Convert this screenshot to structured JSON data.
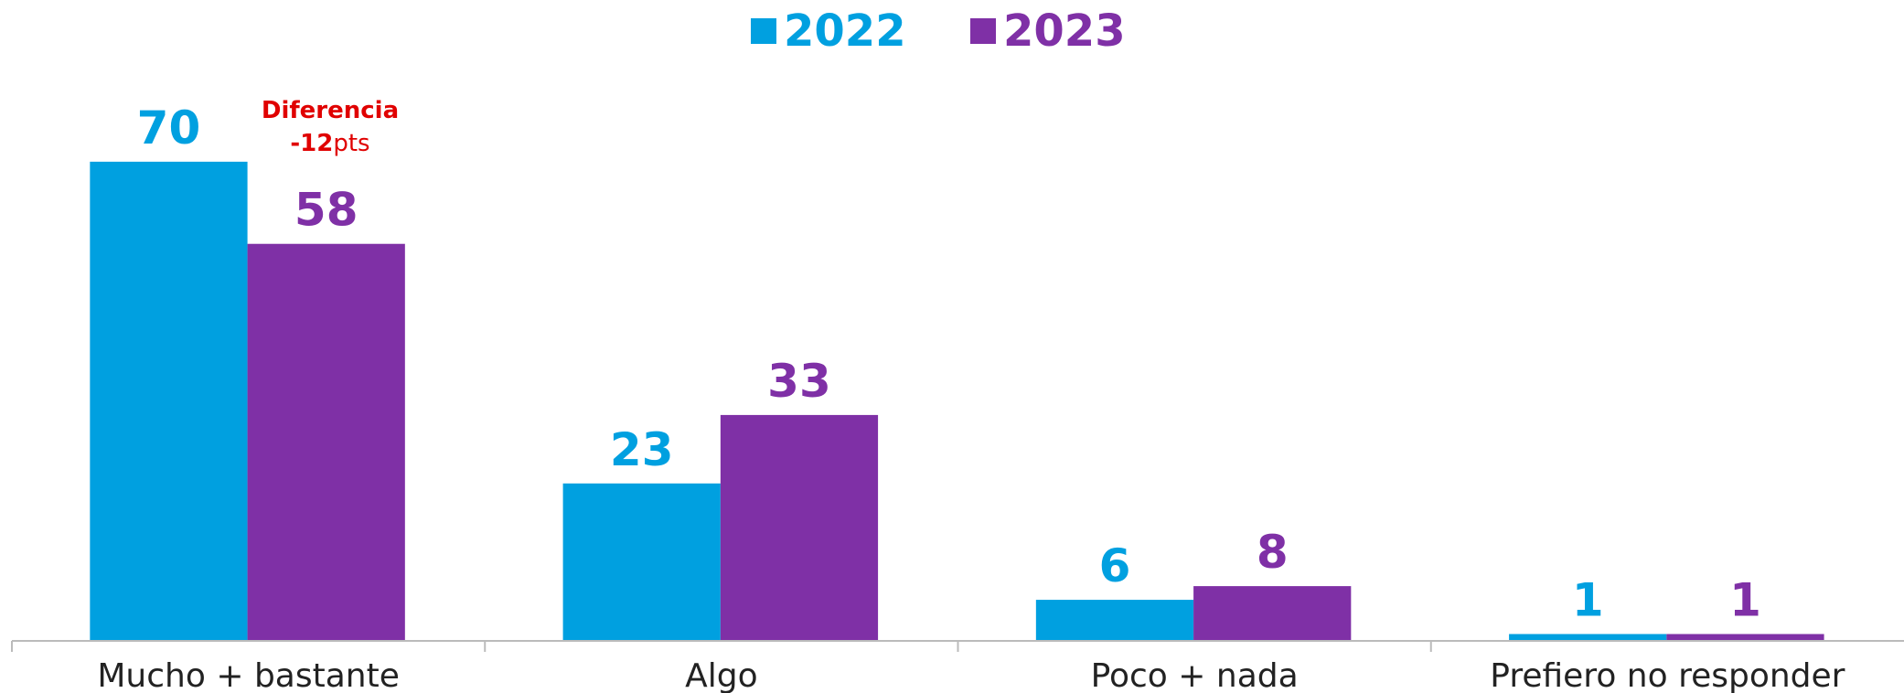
{
  "chart_data": {
    "type": "bar",
    "categories": [
      "Mucho + bastante",
      "Algo",
      "Poco + nada",
      "Prefiero no responder"
    ],
    "series": [
      {
        "name": "2022",
        "color": "#00a0e0",
        "values": [
          70,
          23,
          6,
          1
        ]
      },
      {
        "name": "2023",
        "color": "#7f30a6",
        "values": [
          58,
          33,
          8,
          1
        ]
      }
    ],
    "ylim": [
      0,
      80
    ],
    "legend": "top",
    "annotation": {
      "title": "Diferencia",
      "value": -12,
      "unit": "pts"
    }
  }
}
